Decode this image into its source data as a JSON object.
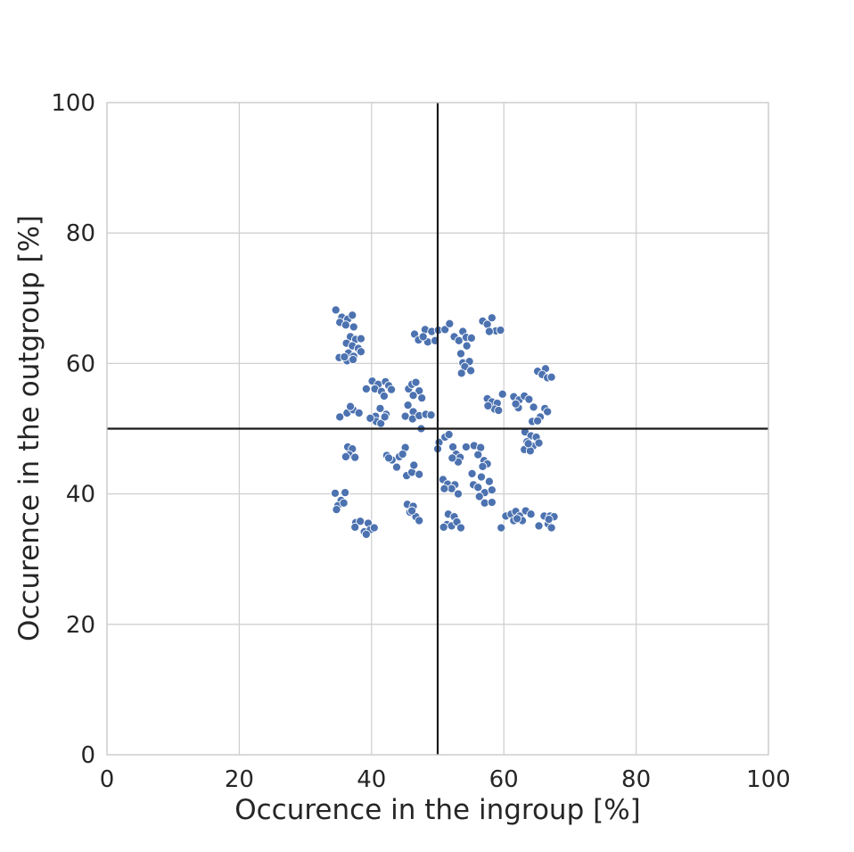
{
  "chart_data": {
    "type": "scatter",
    "title": "",
    "xlabel": "Occurence in the ingroup [%]",
    "ylabel": "Occurence in the outgroup [%]",
    "xlim": [
      0,
      100
    ],
    "ylim": [
      0,
      100
    ],
    "xticks": [
      0,
      20,
      40,
      60,
      80,
      100
    ],
    "yticks": [
      0,
      20,
      40,
      60,
      80,
      100
    ],
    "x_tick_labels": [
      "0",
      "20",
      "40",
      "60",
      "80",
      "100"
    ],
    "y_tick_labels": [
      "0",
      "20",
      "40",
      "60",
      "80",
      "100"
    ],
    "grid": true,
    "reference_lines": {
      "vertical_x": 50,
      "horizontal_y": 50
    },
    "colors": {
      "points": "#4c72b0",
      "point_edge": "#ffffff",
      "grid": "#d0d0d0",
      "axes_frame": "#cccccc",
      "reference_line": "#1a1a1a",
      "text": "#262626"
    },
    "points": [
      [
        34.6,
        68.2
      ],
      [
        35.5,
        67.1
      ],
      [
        36.4,
        66.8
      ],
      [
        37.1,
        67.4
      ],
      [
        35.2,
        66.3
      ],
      [
        36.1,
        65.9
      ],
      [
        37.3,
        65.6
      ],
      [
        36.8,
        64.1
      ],
      [
        37.6,
        63.7
      ],
      [
        38.4,
        63.8
      ],
      [
        36.2,
        63.1
      ],
      [
        37.1,
        62.7
      ],
      [
        38.0,
        62.3
      ],
      [
        36.5,
        61.6
      ],
      [
        37.3,
        61.1
      ],
      [
        38.4,
        61.8
      ],
      [
        35.1,
        60.9
      ],
      [
        36.3,
        60.4
      ],
      [
        37.2,
        60.6
      ],
      [
        35.9,
        61.0
      ],
      [
        34.5,
        40.1
      ],
      [
        36.0,
        40.2
      ],
      [
        35.4,
        39.0
      ],
      [
        34.9,
        38.2
      ],
      [
        35.8,
        38.6
      ],
      [
        34.7,
        37.6
      ],
      [
        37.6,
        35.6
      ],
      [
        38.3,
        35.8
      ],
      [
        39.5,
        35.5
      ],
      [
        37.5,
        34.9
      ],
      [
        38.9,
        34.2
      ],
      [
        39.8,
        34.5
      ],
      [
        40.4,
        34.8
      ],
      [
        39.2,
        33.8
      ],
      [
        36.4,
        47.2
      ],
      [
        37.1,
        46.9
      ],
      [
        36.6,
        46.0
      ],
      [
        37.5,
        45.6
      ],
      [
        36.1,
        45.7
      ],
      [
        35.2,
        51.8
      ],
      [
        36.3,
        52.4
      ],
      [
        37.2,
        52.9
      ],
      [
        36.8,
        53.4
      ],
      [
        38.1,
        52.4
      ],
      [
        39.2,
        56.1
      ],
      [
        40.1,
        57.3
      ],
      [
        41.0,
        56.8
      ],
      [
        42.1,
        57.2
      ],
      [
        40.5,
        56.1
      ],
      [
        41.5,
        55.7
      ],
      [
        42.6,
        56.6
      ],
      [
        43.0,
        56.0
      ],
      [
        41.9,
        55.0
      ],
      [
        40.6,
        51.9
      ],
      [
        41.3,
        53.1
      ],
      [
        42.2,
        52.2
      ],
      [
        40.7,
        51.1
      ],
      [
        41.4,
        50.8
      ],
      [
        42.0,
        51.8
      ],
      [
        39.8,
        51.6
      ],
      [
        42.3,
        45.9
      ],
      [
        43.1,
        45.2
      ],
      [
        43.8,
        44.1
      ],
      [
        42.6,
        45.5
      ],
      [
        44.2,
        45.7
      ],
      [
        45.1,
        47.1
      ],
      [
        44.7,
        46.1
      ],
      [
        45.3,
        42.8
      ],
      [
        46.1,
        43.3
      ],
      [
        47.2,
        43.0
      ],
      [
        46.4,
        44.4
      ],
      [
        45.1,
        51.9
      ],
      [
        46.3,
        52.6
      ],
      [
        45.5,
        53.6
      ],
      [
        46.2,
        51.5
      ],
      [
        47.2,
        52.0
      ],
      [
        48.2,
        52.2
      ],
      [
        49.0,
        52.1
      ],
      [
        47.5,
        50.0
      ],
      [
        45.6,
        56.1
      ],
      [
        46.1,
        56.8
      ],
      [
        46.7,
        57.1
      ],
      [
        47.2,
        55.8
      ],
      [
        47.6,
        54.7
      ],
      [
        46.3,
        55.1
      ],
      [
        45.4,
        38.4
      ],
      [
        46.3,
        38.1
      ],
      [
        45.8,
        37.2
      ],
      [
        46.7,
        36.5
      ],
      [
        47.2,
        35.9
      ],
      [
        46.1,
        37.4
      ],
      [
        46.5,
        64.5
      ],
      [
        47.1,
        63.6
      ],
      [
        48.1,
        65.2
      ],
      [
        48.5,
        63.3
      ],
      [
        49.1,
        64.9
      ],
      [
        49.6,
        63.5
      ],
      [
        50.1,
        65.1
      ],
      [
        47.8,
        64.1
      ],
      [
        51.1,
        65.2
      ],
      [
        51.8,
        66.1
      ],
      [
        52.5,
        64.1
      ],
      [
        53.2,
        63.5
      ],
      [
        53.8,
        64.9
      ],
      [
        54.3,
        64.0
      ],
      [
        55.1,
        63.9
      ],
      [
        54.4,
        62.7
      ],
      [
        53.5,
        61.5
      ],
      [
        53.8,
        60.1
      ],
      [
        54.8,
        60.3
      ],
      [
        54.1,
        59.5
      ],
      [
        55.0,
        58.9
      ],
      [
        53.6,
        58.5
      ],
      [
        56.8,
        66.5
      ],
      [
        57.5,
        66.0
      ],
      [
        58.2,
        67.0
      ],
      [
        58.8,
        65.0
      ],
      [
        57.8,
        64.9
      ],
      [
        59.5,
        65.1
      ],
      [
        57.5,
        54.6
      ],
      [
        58.2,
        54.1
      ],
      [
        59.0,
        53.9
      ],
      [
        59.8,
        55.3
      ],
      [
        58.6,
        53.0
      ],
      [
        59.2,
        52.8
      ],
      [
        57.6,
        53.5
      ],
      [
        61.5,
        54.9
      ],
      [
        62.3,
        54.4
      ],
      [
        63.1,
        55.0
      ],
      [
        62.2,
        53.2
      ],
      [
        63.8,
        54.5
      ],
      [
        64.5,
        53.3
      ],
      [
        64.3,
        51.1
      ],
      [
        61.8,
        53.8
      ],
      [
        63.2,
        49.5
      ],
      [
        64.1,
        48.9
      ],
      [
        64.9,
        48.7
      ],
      [
        63.5,
        48.0
      ],
      [
        64.4,
        47.3
      ],
      [
        63.1,
        46.8
      ],
      [
        65.3,
        47.8
      ],
      [
        64.0,
        46.6
      ],
      [
        65.1,
        58.8
      ],
      [
        66.3,
        59.2
      ],
      [
        65.8,
        58.3
      ],
      [
        66.6,
        57.8
      ],
      [
        67.2,
        57.9
      ],
      [
        65.5,
        51.8
      ],
      [
        66.2,
        53.1
      ],
      [
        66.6,
        52.6
      ],
      [
        65.1,
        51.2
      ],
      [
        63.7,
        47.7
      ],
      [
        50.2,
        47.9
      ],
      [
        51.1,
        48.7
      ],
      [
        51.7,
        49.1
      ],
      [
        52.3,
        47.2
      ],
      [
        52.8,
        46.1
      ],
      [
        53.4,
        45.6
      ],
      [
        54.3,
        47.2
      ],
      [
        53.1,
        44.9
      ],
      [
        52.2,
        45.5
      ],
      [
        50.0,
        46.9
      ],
      [
        55.5,
        47.4
      ],
      [
        56.5,
        47.1
      ],
      [
        56.1,
        46.0
      ],
      [
        57.0,
        45.1
      ],
      [
        57.5,
        44.6
      ],
      [
        56.8,
        44.2
      ],
      [
        55.2,
        43.1
      ],
      [
        55.4,
        41.4
      ],
      [
        56.6,
        42.6
      ],
      [
        56.1,
        41.0
      ],
      [
        57.8,
        41.9
      ],
      [
        57.1,
        40.2
      ],
      [
        58.2,
        40.6
      ],
      [
        56.3,
        39.6
      ],
      [
        57.1,
        38.6
      ],
      [
        58.2,
        38.7
      ],
      [
        50.8,
        42.2
      ],
      [
        51.5,
        41.5
      ],
      [
        52.6,
        41.4
      ],
      [
        52.1,
        40.8
      ],
      [
        51.0,
        40.8
      ],
      [
        53.1,
        40.0
      ],
      [
        51.6,
        36.9
      ],
      [
        52.5,
        36.5
      ],
      [
        51.4,
        35.3
      ],
      [
        52.1,
        35.1
      ],
      [
        52.9,
        35.7
      ],
      [
        53.5,
        34.8
      ],
      [
        50.9,
        34.9
      ],
      [
        59.6,
        34.8
      ],
      [
        60.3,
        36.6
      ],
      [
        61.1,
        36.9
      ],
      [
        61.8,
        37.3
      ],
      [
        62.4,
        36.6
      ],
      [
        61.5,
        35.9
      ],
      [
        62.8,
        35.9
      ],
      [
        63.3,
        37.4
      ],
      [
        64.1,
        36.9
      ],
      [
        62.0,
        36.2
      ],
      [
        65.3,
        35.1
      ],
      [
        66.1,
        36.6
      ],
      [
        67.0,
        36.6
      ],
      [
        67.6,
        36.5
      ],
      [
        66.7,
        35.4
      ],
      [
        67.2,
        34.8
      ],
      [
        66.8,
        36.1
      ]
    ]
  }
}
